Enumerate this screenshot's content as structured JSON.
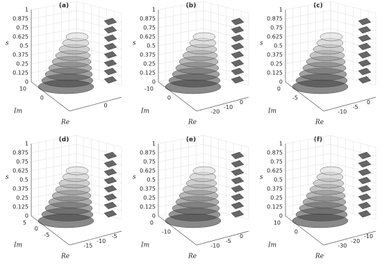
{
  "z_axis": {
    "label": "s",
    "ticks": [
      1,
      0.875,
      0.75,
      0.625,
      0.5,
      0.375,
      0.25,
      0.125,
      0
    ]
  },
  "im_label": "Im",
  "re_label": "Re",
  "panels": [
    {
      "label": "(a)",
      "im_ticks": [
        10,
        0
      ],
      "re_ticks": [
        0
      ]
    },
    {
      "label": "(b)",
      "im_ticks": [
        -10,
        0
      ],
      "re_ticks": [
        -20,
        -10,
        0
      ]
    },
    {
      "label": "(c)",
      "im_ticks": [
        0,
        -5
      ],
      "re_ticks": [
        -10,
        -5,
        0
      ]
    },
    {
      "label": "(d)",
      "im_ticks": [
        5,
        0,
        -5
      ],
      "re_ticks": [
        -15,
        -10,
        -5
      ]
    },
    {
      "label": "(e)",
      "im_ticks": [
        0,
        -10
      ],
      "re_ticks": [
        -10,
        -5,
        0
      ]
    },
    {
      "label": "(f)",
      "im_ticks": [
        10,
        0
      ],
      "re_ticks": [
        -30,
        -20,
        -10
      ]
    }
  ]
}
